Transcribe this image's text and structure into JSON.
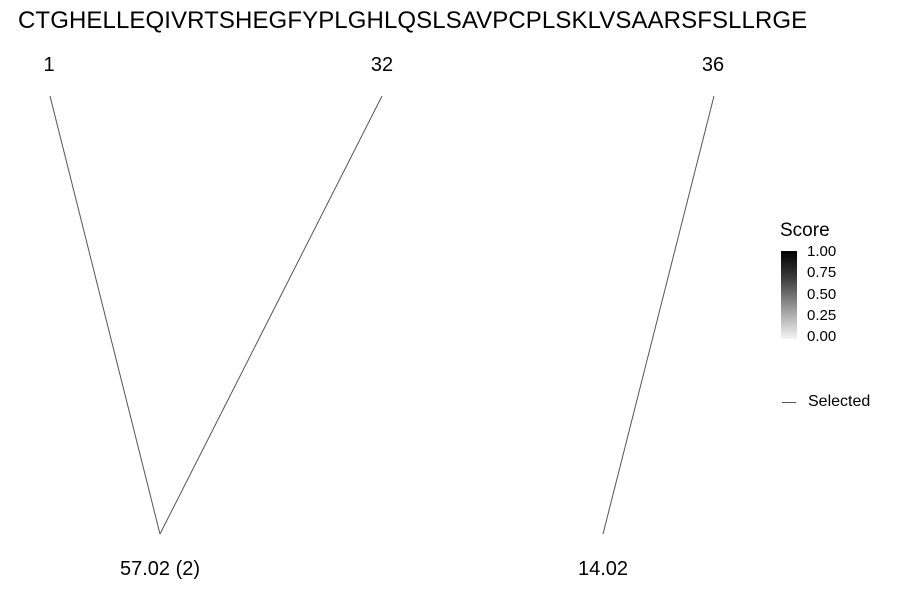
{
  "sequence": "CTGHELLEQIVRTSHEGFYPLGHLQSLSAVPCPLSKLVSAARSFSLLRGE",
  "positions": [
    "1",
    "32",
    "36"
  ],
  "masses": [
    "57.02 (2)",
    "14.02"
  ],
  "legend": {
    "title": "Score",
    "ticks": [
      "1.00",
      "0.75",
      "0.50",
      "0.25",
      "0.00"
    ],
    "selected_label": "Selected"
  },
  "colors": {
    "line": "#555555",
    "score_high": "#000000",
    "score_low": "#f5f5f5"
  }
}
